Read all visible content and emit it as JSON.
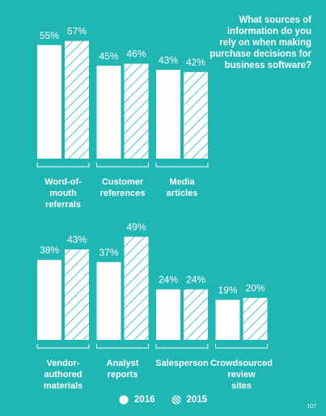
{
  "chart_data": {
    "type": "bar",
    "title_lines": [
      "What sources of",
      "information do you",
      "rely on when making",
      "purchase decisions for",
      "business software?"
    ],
    "series": [
      {
        "name": "2016",
        "pattern": "solid"
      },
      {
        "name": "2015",
        "pattern": "hatched"
      }
    ],
    "unit_suffix": "%",
    "ylim": [
      0,
      60
    ],
    "panels": [
      {
        "categories": [
          {
            "lines": [
              "Word-of-",
              "mouth",
              "referrals"
            ],
            "values": [
              55,
              57
            ]
          },
          {
            "lines": [
              "Customer",
              "references"
            ],
            "values": [
              45,
              46
            ]
          },
          {
            "lines": [
              "Media",
              "articles"
            ],
            "values": [
              43,
              42
            ]
          }
        ]
      },
      {
        "categories": [
          {
            "lines": [
              "Vendor-",
              "authored",
              "materials"
            ],
            "values": [
              38,
              43
            ]
          },
          {
            "lines": [
              "Analyst",
              "reports"
            ],
            "values": [
              37,
              49
            ]
          },
          {
            "lines": [
              "Salesperson"
            ],
            "values": [
              24,
              24
            ]
          },
          {
            "lines": [
              "Crowdsourced",
              "review",
              "sites"
            ],
            "values": [
              19,
              20
            ]
          }
        ]
      }
    ]
  },
  "colors": {
    "background": "#1fb6b4",
    "bar": "#ffffff",
    "hatch": "#1fb6b4"
  },
  "legend": {
    "item_2016": "2016",
    "item_2015": "2015"
  },
  "page_number": "107"
}
